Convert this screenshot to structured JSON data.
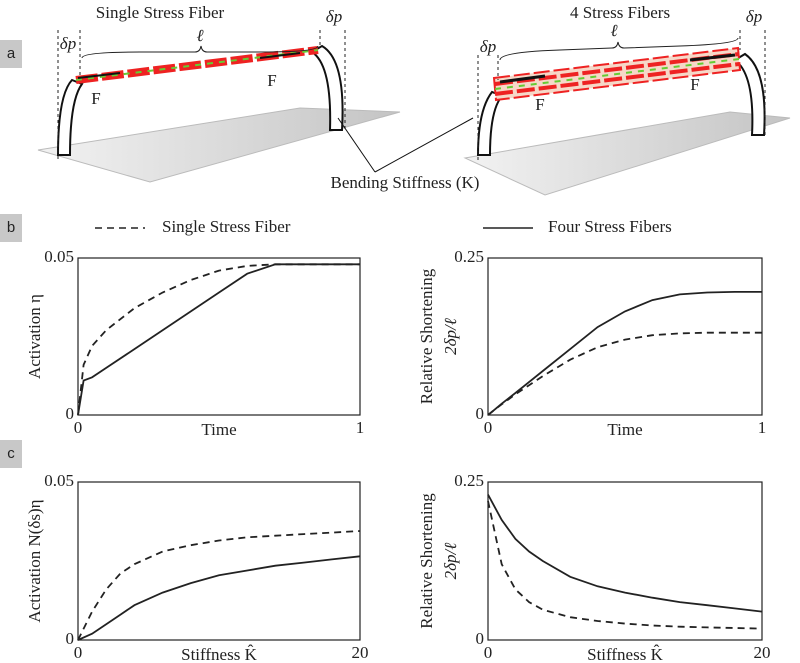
{
  "figure": {
    "panel_labels": [
      "a",
      "b",
      "c"
    ],
    "diagrams": [
      {
        "title": "Single Stress Fiber",
        "length": "ℓ",
        "displacement": [
          "δp",
          "δp"
        ],
        "force": [
          "F",
          "F"
        ]
      },
      {
        "title": "4 Stress Fibers",
        "length": "ℓ",
        "displacement": [
          "δp",
          "δp"
        ],
        "force": [
          "F",
          "F"
        ]
      }
    ],
    "annotation": "Bending Stiffness (K)"
  },
  "chart_data": [
    {
      "type": "line",
      "ylabel": "Activation η",
      "xlabel": "Time",
      "x": [
        0,
        0.02,
        0.05,
        0.1,
        0.2,
        0.3,
        0.4,
        0.5,
        0.6,
        0.7,
        0.8,
        0.9,
        1
      ],
      "xlim": [
        0,
        1
      ],
      "xticks": [
        0,
        1
      ],
      "ylim": [
        0,
        0.05
      ],
      "yticks": [
        0,
        0.05
      ],
      "series": [
        {
          "name": "Single Stress Fiber",
          "color": "#222",
          "style": "dashed",
          "values": [
            0,
            0.016,
            0.022,
            0.027,
            0.034,
            0.039,
            0.043,
            0.046,
            0.0475,
            0.048,
            0.048,
            0.048,
            0.048
          ]
        },
        {
          "name": "Four Stress Fibers",
          "color": "#222",
          "style": "solid",
          "values": [
            0,
            0.011,
            0.012,
            0.015,
            0.021,
            0.027,
            0.033,
            0.039,
            0.045,
            0.048,
            0.048,
            0.048,
            0.048
          ]
        }
      ]
    },
    {
      "type": "line",
      "ylabel": "Relative Shortening",
      "ylabel_math": "2δp/ℓ",
      "xlabel": "Time",
      "x": [
        0,
        0.02,
        0.05,
        0.1,
        0.2,
        0.3,
        0.4,
        0.5,
        0.6,
        0.7,
        0.8,
        0.9,
        1
      ],
      "xlim": [
        0,
        1
      ],
      "xticks": [
        0,
        1
      ],
      "ylim": [
        0,
        0.25
      ],
      "yticks": [
        0,
        0.25
      ],
      "series": [
        {
          "color": "#222",
          "style": "dashed",
          "values": [
            0,
            0.007,
            0.017,
            0.033,
            0.062,
            0.088,
            0.108,
            0.12,
            0.127,
            0.13,
            0.131,
            0.131,
            0.131
          ]
        },
        {
          "color": "#222",
          "style": "solid",
          "values": [
            0,
            0.007,
            0.018,
            0.035,
            0.07,
            0.105,
            0.14,
            0.165,
            0.183,
            0.192,
            0.195,
            0.196,
            0.196
          ]
        }
      ]
    },
    {
      "type": "line",
      "ylabel": "Activation N(δs)η",
      "xlabel": "Stiffness K̂",
      "x": [
        0,
        1,
        2,
        3,
        4,
        6,
        8,
        10,
        12,
        14,
        16,
        18,
        20
      ],
      "xlim": [
        0,
        20
      ],
      "xticks": [
        0,
        20
      ],
      "ylim": [
        0,
        0.05
      ],
      "yticks": [
        0,
        0.05
      ],
      "series": [
        {
          "color": "#222",
          "style": "dashed",
          "values": [
            0,
            0.009,
            0.016,
            0.021,
            0.024,
            0.028,
            0.03,
            0.0315,
            0.0325,
            0.033,
            0.0335,
            0.034,
            0.0345
          ]
        },
        {
          "color": "#222",
          "style": "solid",
          "values": [
            0,
            0.002,
            0.005,
            0.008,
            0.011,
            0.015,
            0.018,
            0.0205,
            0.022,
            0.0235,
            0.0245,
            0.0255,
            0.0265
          ]
        }
      ]
    },
    {
      "type": "line",
      "ylabel": "Relative Shortening",
      "ylabel_math": "2δp/ℓ",
      "xlabel": "Stiffness K̂",
      "x": [
        0,
        1,
        2,
        3,
        4,
        6,
        8,
        10,
        12,
        14,
        16,
        18,
        20
      ],
      "xlim": [
        0,
        20
      ],
      "xticks": [
        0,
        20
      ],
      "ylim": [
        0,
        0.25
      ],
      "yticks": [
        0,
        0.25
      ],
      "series": [
        {
          "color": "#222",
          "style": "dashed",
          "values": [
            0.22,
            0.12,
            0.08,
            0.06,
            0.048,
            0.036,
            0.03,
            0.026,
            0.023,
            0.021,
            0.02,
            0.019,
            0.018
          ]
        },
        {
          "color": "#222",
          "style": "solid",
          "values": [
            0.23,
            0.19,
            0.16,
            0.14,
            0.125,
            0.1,
            0.085,
            0.075,
            0.067,
            0.06,
            0.055,
            0.05,
            0.045
          ]
        }
      ]
    }
  ]
}
